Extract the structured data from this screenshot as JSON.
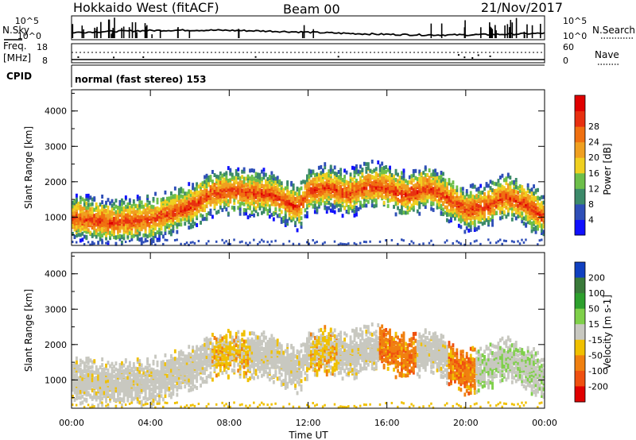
{
  "header": {
    "title": "Hokkaido West (fitACF)",
    "beam": "Beam 00",
    "date": "21/Nov/2017"
  },
  "top_panels": {
    "nsky_label": "N.Sky",
    "nsearch_label": "N.Search",
    "noise_ticks_left": [
      "10^5",
      "10^0"
    ],
    "noise_ticks_right": [
      "10^5",
      "10^0"
    ],
    "freq_label_line1": "Freq.",
    "freq_label_line2": "[MHz]",
    "freq_ticks": [
      "18",
      "8"
    ],
    "nave_label": "Nave",
    "nave_ticks": [
      "60",
      "0"
    ],
    "cpid_label": "CPID",
    "cpid_value": "normal (fast stereo) 153"
  },
  "chart_data": [
    {
      "type": "heatmap",
      "name": "power",
      "ylabel": "Slant Range [km]",
      "yticks": [
        "1000",
        "2000",
        "3000",
        "4000"
      ],
      "ylim": [
        200,
        4600
      ],
      "colorbar_label": "Power [dB]",
      "colorbar_ticks": [
        "4",
        "8",
        "12",
        "16",
        "20",
        "24",
        "28"
      ],
      "colorbar_colors": [
        "#1010ff",
        "#2f4fb8",
        "#3c8a6a",
        "#6dbf4a",
        "#f0d020",
        "#f0a020",
        "#f07010",
        "#e83010",
        "#e00000"
      ],
      "bands": [
        {
          "t": [
            0,
            2,
            4,
            6,
            7,
            8,
            9,
            10,
            11,
            11.5,
            12,
            13,
            14,
            15,
            16,
            17,
            18,
            19,
            20,
            21,
            22,
            23,
            24
          ],
          "r": [
            1000,
            850,
            950,
            1300,
            1650,
            1750,
            1700,
            1650,
            1400,
            1300,
            1750,
            1850,
            1650,
            1900,
            1800,
            1600,
            1850,
            1550,
            1200,
            1300,
            1600,
            1350,
            1000
          ]
        }
      ]
    },
    {
      "type": "heatmap",
      "name": "velocity",
      "ylabel": "Slant Range [km]",
      "xlabel": "Time UT",
      "xticks": [
        "00:00",
        "04:00",
        "08:00",
        "12:00",
        "16:00",
        "20:00",
        "00:00"
      ],
      "yticks": [
        "1000",
        "2000",
        "3000",
        "4000"
      ],
      "ylim": [
        200,
        4600
      ],
      "colorbar_label": "Velocity [m s-1]",
      "colorbar_ticks": [
        "200",
        "100",
        "50",
        "15",
        "-15",
        "-50",
        "-100",
        "-200"
      ],
      "colorbar_colors": [
        "#1040c0",
        "#3a7a3a",
        "#2da02d",
        "#7fd04a",
        "#c8c8c0",
        "#f0c000",
        "#f08010",
        "#f05010",
        "#e00000"
      ]
    }
  ]
}
